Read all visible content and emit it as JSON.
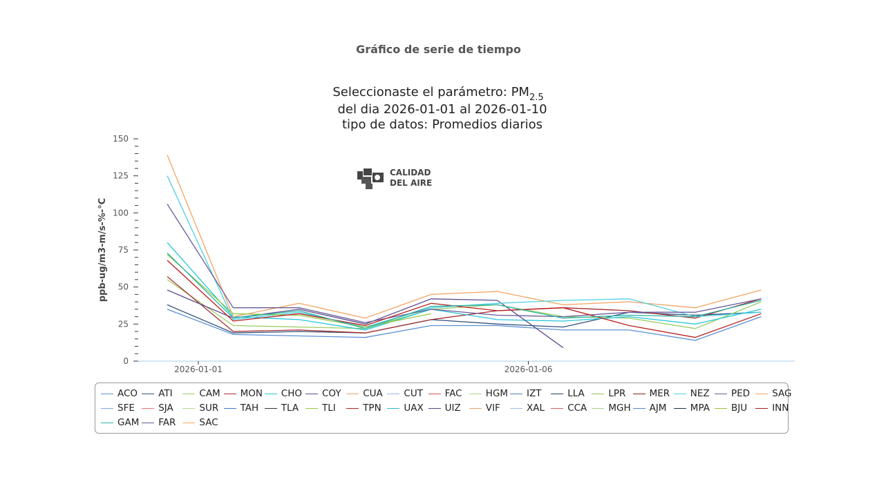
{
  "page": {
    "title": "Gráfico de serie de tiempo"
  },
  "logo": {
    "line1": "CALIDAD",
    "line2": "DEL AIRE"
  },
  "chart_data": {
    "type": "line",
    "title_lines": [
      "Seleccionaste el parámetro: PM",
      "del dia 2026-01-01 al 2026-01-10",
      "tipo de datos: Promedios diarios"
    ],
    "title_subscript": "2.5",
    "ylabel": "ppb-ug/m3-m/s-%-°C",
    "ylim": [
      0,
      150
    ],
    "yticks": [
      0,
      25,
      50,
      75,
      100,
      125,
      150
    ],
    "x": [
      "2026-01-01",
      "2026-01-02",
      "2026-01-03",
      "2026-01-04",
      "2026-01-05",
      "2026-01-06",
      "2026-01-07",
      "2026-01-08",
      "2026-01-09",
      "2026-01-10"
    ],
    "xticks": [
      "2026-01-01",
      "2026-01-06"
    ],
    "series": [
      {
        "name": "ACO",
        "color": "#5b8fd6",
        "values": [
          35,
          18,
          17,
          16,
          24,
          24,
          21,
          21,
          14,
          30
        ]
      },
      {
        "name": "ATI",
        "color": "#2f4f7f",
        "values": [
          38,
          19,
          20,
          19,
          28,
          25,
          23,
          33,
          31,
          33
        ]
      },
      {
        "name": "CAM",
        "color": "#9ccc65",
        "values": [
          55,
          24,
          23,
          22,
          35,
          38,
          30,
          29,
          22,
          40
        ]
      },
      {
        "name": "MON",
        "color": "#a52a2a",
        "values": [
          57,
          20,
          21,
          19,
          28,
          34,
          36,
          34,
          29,
          42
        ]
      },
      {
        "name": "CHO",
        "color": "#26c6da",
        "values": [
          80,
          30,
          28,
          21,
          35,
          28,
          27,
          30,
          25,
          35
        ]
      },
      {
        "name": "COY",
        "color": "#5e4a8a",
        "values": [
          48,
          29,
          35,
          25,
          42,
          41,
          9,
          null,
          null,
          null
        ]
      },
      {
        "name": "CUA",
        "color": "#f4a261",
        "values": [
          139,
          30,
          39,
          29,
          45,
          47,
          38,
          40,
          36,
          48
        ]
      },
      {
        "name": "CUT",
        "color": "#90b4e8",
        "values": [
          null,
          null,
          null,
          null,
          null,
          null,
          null,
          null,
          null,
          null
        ]
      },
      {
        "name": "FAC",
        "color": "#d9534f",
        "values": [
          null,
          null,
          null,
          null,
          null,
          null,
          null,
          null,
          null,
          null
        ]
      },
      {
        "name": "HGM",
        "color": "#aed581",
        "values": [
          null,
          null,
          null,
          null,
          null,
          null,
          null,
          null,
          null,
          null
        ]
      },
      {
        "name": "IZT",
        "color": "#4a7fc1",
        "values": [
          null,
          null,
          null,
          null,
          null,
          null,
          null,
          null,
          null,
          null
        ]
      },
      {
        "name": "LLA",
        "color": "#1f3a5f",
        "values": [
          null,
          null,
          null,
          null,
          null,
          null,
          null,
          null,
          null,
          null
        ]
      },
      {
        "name": "LPR",
        "color": "#8bc34a",
        "values": [
          null,
          null,
          null,
          null,
          null,
          null,
          null,
          null,
          null,
          null
        ]
      },
      {
        "name": "MER",
        "color": "#8b1a1a",
        "values": [
          null,
          null,
          null,
          null,
          null,
          null,
          null,
          null,
          null,
          null
        ]
      },
      {
        "name": "NEZ",
        "color": "#4dd0e1",
        "values": [
          125,
          28,
          33,
          23,
          36,
          39,
          41,
          42,
          30,
          33
        ]
      },
      {
        "name": "PED",
        "color": "#6a5b9a",
        "values": [
          106,
          36,
          36,
          26,
          35,
          31,
          30,
          33,
          33,
          42
        ]
      },
      {
        "name": "SAG",
        "color": "#f0a868",
        "values": [
          null,
          null,
          null,
          null,
          null,
          null,
          null,
          null,
          null,
          null
        ]
      },
      {
        "name": "SFE",
        "color": "#7fa8e0",
        "values": [
          null,
          null,
          null,
          null,
          null,
          null,
          null,
          null,
          null,
          null
        ]
      },
      {
        "name": "SJA",
        "color": "#e57373",
        "values": [
          null,
          null,
          null,
          null,
          null,
          null,
          null,
          null,
          null,
          null
        ]
      },
      {
        "name": "SUR",
        "color": "#b5d98a",
        "values": [
          null,
          null,
          null,
          null,
          null,
          null,
          null,
          null,
          null,
          null
        ]
      },
      {
        "name": "TAH",
        "color": "#3a78c8",
        "values": [
          null,
          null,
          null,
          null,
          null,
          null,
          null,
          null,
          null,
          null
        ]
      },
      {
        "name": "TLA",
        "color": "#263238",
        "values": [
          null,
          null,
          null,
          null,
          null,
          null,
          null,
          null,
          null,
          null
        ]
      },
      {
        "name": "TLI",
        "color": "#8fc740",
        "values": [
          72,
          32,
          31,
          23,
          32,
          null,
          null,
          null,
          null,
          null
        ]
      },
      {
        "name": "TPN",
        "color": "#b71c1c",
        "values": [
          68,
          27,
          32,
          24,
          39,
          34,
          36,
          24,
          16,
          32
        ]
      },
      {
        "name": "UAX",
        "color": "#29b6d6",
        "values": [
          null,
          null,
          null,
          null,
          null,
          null,
          null,
          null,
          null,
          null
        ]
      },
      {
        "name": "UIZ",
        "color": "#5b3f8c",
        "values": [
          null,
          null,
          null,
          null,
          null,
          null,
          null,
          null,
          null,
          null
        ]
      },
      {
        "name": "VIF",
        "color": "#f29b5c",
        "values": [
          null,
          null,
          null,
          null,
          null,
          null,
          null,
          null,
          null,
          null
        ]
      },
      {
        "name": "XAL",
        "color": "#9bbce8",
        "values": [
          null,
          null,
          null,
          null,
          null,
          null,
          null,
          null,
          null,
          null
        ]
      },
      {
        "name": "CCA",
        "color": "#d9605a",
        "values": [
          null,
          null,
          null,
          null,
          null,
          null,
          null,
          null,
          null,
          null
        ]
      },
      {
        "name": "MGH",
        "color": "#a8d08d",
        "values": [
          null,
          null,
          null,
          null,
          null,
          null,
          null,
          null,
          null,
          null
        ]
      },
      {
        "name": "AJM",
        "color": "#4f86d0",
        "values": [
          null,
          null,
          null,
          null,
          null,
          null,
          null,
          null,
          null,
          null
        ]
      },
      {
        "name": "MPA",
        "color": "#1c2b3a",
        "values": [
          null,
          null,
          null,
          null,
          null,
          null,
          null,
          null,
          null,
          null
        ]
      },
      {
        "name": "BJU",
        "color": "#93c13c",
        "values": [
          null,
          null,
          null,
          null,
          null,
          null,
          null,
          null,
          null,
          null
        ]
      },
      {
        "name": "INN",
        "color": "#a01818",
        "values": [
          null,
          null,
          null,
          null,
          null,
          null,
          null,
          null,
          null,
          null
        ]
      },
      {
        "name": "GAM",
        "color": "#2ab3a5",
        "values": [
          73,
          29,
          34,
          22,
          37,
          38,
          29,
          31,
          30,
          41
        ]
      },
      {
        "name": "FAR",
        "color": "#64558f",
        "values": [
          null,
          null,
          null,
          null,
          null,
          null,
          null,
          null,
          null,
          null
        ]
      },
      {
        "name": "SAC",
        "color": "#f5a95f",
        "values": [
          null,
          null,
          null,
          null,
          null,
          null,
          null,
          null,
          null,
          null
        ]
      }
    ]
  }
}
